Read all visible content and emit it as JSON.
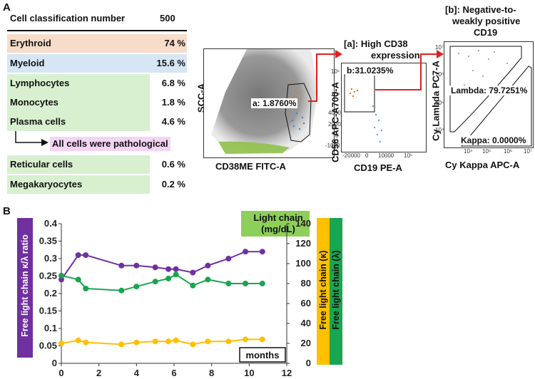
{
  "panel_a": {
    "letter": "A",
    "table": {
      "header_label": "Cell classification number",
      "header_value": "500",
      "rows": [
        {
          "label": "Erythroid",
          "value": "74 %"
        },
        {
          "label": "Myeloid",
          "value": "15.6 %"
        },
        {
          "label": "Lymphocytes",
          "value": "6.8 %"
        },
        {
          "label": "Monocytes",
          "value": "1.8 %"
        },
        {
          "label": "Plasma cells",
          "value": "4.6 %"
        },
        {
          "label": "Reticular cells",
          "value": "0.6 %"
        },
        {
          "label": "Megakaryocytes",
          "value": "0.2 %"
        }
      ],
      "pathology_note": "All cells were pathological"
    },
    "flow1": {
      "ylabel": "SCC-A",
      "xlabel": "CD38ME FITC-A",
      "gate": "a: 1.8760%"
    },
    "flow2": {
      "title_line1": "[a]: High CD38",
      "title_line2": "expression",
      "ylabel": "CD56 APC-A700-A",
      "xlabel": "CD19 PE-A",
      "gate": "b:31.0235%",
      "yticks": [
        "10⁵",
        "10⁴",
        "4000",
        "2000",
        "0",
        "-1000"
      ],
      "xticks": [
        "-20000",
        "0",
        "10000",
        "10⁵"
      ]
    },
    "flow3": {
      "title_line1": "[b]: Negative-to-",
      "title_line2": "weakly positive",
      "title_line3": "CD19",
      "ylabel": "Cy Lambda PC7-A",
      "xlabel": "Cy Kappa APC-A",
      "gate_lambda": "Lambda: 79.7251%",
      "gate_kappa": "Kappa: 0.0000%",
      "yticks": [
        "10⁷",
        "10⁶",
        "10⁵",
        "10⁴"
      ],
      "xticks": [
        "10⁴",
        "10⁵",
        "10⁶",
        "10⁷"
      ]
    }
  },
  "panel_b": {
    "letter": "B",
    "chart_data": {
      "type": "line",
      "xlabel": "months",
      "xlim": [
        0,
        12
      ],
      "xticks": [
        0,
        2,
        4,
        6,
        8,
        10,
        12
      ],
      "left_axis": {
        "label": "Free light chain κ/λ ratio",
        "ylim": [
          0,
          0.4
        ],
        "ticks": [
          "0",
          "0.05",
          "0.1",
          "0.15",
          "0.2",
          "0.25",
          "0.3",
          "0.35",
          "0.4"
        ]
      },
      "right_axis": {
        "label_line1": "Light chain",
        "label_line2": "(mg/dL)",
        "ylim": [
          0,
          140
        ],
        "ticks": [
          "0",
          "20",
          "40",
          "60",
          "80",
          "100",
          "120",
          "140"
        ]
      },
      "series": [
        {
          "name": "Free light chain κ/λ ratio",
          "axis": "left",
          "color": "#7030a0",
          "x": [
            0,
            0.9,
            1.3,
            3.2,
            4.0,
            5.0,
            5.7,
            6.1,
            7.0,
            7.8,
            8.9,
            9.8,
            10.7
          ],
          "y": [
            0.24,
            0.31,
            0.31,
            0.28,
            0.28,
            0.275,
            0.27,
            0.27,
            0.26,
            0.28,
            0.3,
            0.32,
            0.32
          ]
        },
        {
          "name": "Free light chain (λ)",
          "axis": "right",
          "color": "#1aa550",
          "x": [
            0,
            0.9,
            1.3,
            3.2,
            4.0,
            5.0,
            5.7,
            6.1,
            7.0,
            7.8,
            8.9,
            9.8,
            10.7
          ],
          "y": [
            88,
            84,
            75,
            73,
            77,
            82,
            85,
            89,
            78,
            84,
            80,
            80,
            80
          ]
        },
        {
          "name": "Free light chain (κ)",
          "axis": "right",
          "color": "#ffc000",
          "x": [
            0,
            0.9,
            1.3,
            3.2,
            4.0,
            5.0,
            5.7,
            6.1,
            7.0,
            7.8,
            8.9,
            9.8,
            10.7
          ],
          "y": [
            20,
            23,
            21,
            19,
            21,
            22,
            22,
            23,
            19,
            22,
            22,
            24,
            24
          ]
        }
      ],
      "legend_kappa": "Free light chain (κ)",
      "legend_lambda": "Free light chain (λ)"
    }
  }
}
